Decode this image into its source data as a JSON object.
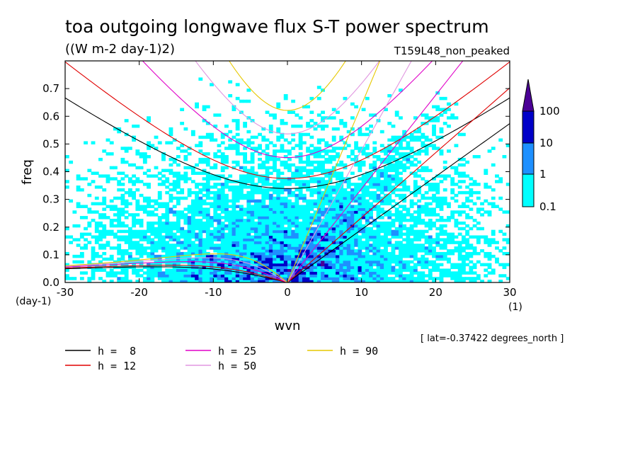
{
  "chart_data": {
    "type": "heatmap",
    "title": "toa outgoing longwave flux S-T power spectrum",
    "units_label": "((W m-2 day-1)2)",
    "run_label": "T159L48_non_peaked",
    "xlabel": "wvn",
    "x_unit_label": "(1)",
    "ylabel": "freq",
    "y_unit_label": "(day-1)",
    "xlim": [
      -30,
      30
    ],
    "ylim": [
      0,
      0.8
    ],
    "x_ticks": [
      -30,
      -20,
      -10,
      0,
      10,
      20,
      30
    ],
    "x_tick_labels": [
      "-30",
      "-20",
      "-10",
      "0",
      "10",
      "20",
      "30"
    ],
    "y_ticks": [
      0,
      0.1,
      0.2,
      0.3,
      0.4,
      0.5,
      0.6,
      0.7
    ],
    "y_tick_labels": [
      "0.0",
      "0.1",
      "0.2",
      "0.3",
      "0.4",
      "0.5",
      "0.6",
      "0.7"
    ],
    "colorbar": {
      "levels": [
        0.1,
        1,
        10,
        100
      ],
      "labels": [
        "0.1",
        "1",
        "10",
        "100"
      ],
      "colors": [
        "#00ffff",
        "#1e90ff",
        "#0000c8",
        "#4b0096"
      ]
    },
    "series": [
      {
        "name": "h = 8",
        "equivalent_depth": 8,
        "color": "#000000"
      },
      {
        "name": "h = 12",
        "equivalent_depth": 12,
        "color": "#e00000"
      },
      {
        "name": "h = 25",
        "equivalent_depth": 25,
        "color": "#e000c8"
      },
      {
        "name": "h = 50",
        "equivalent_depth": 50,
        "color": "#e096e0"
      },
      {
        "name": "h = 90",
        "equivalent_depth": 90,
        "color": "#e6c800"
      }
    ],
    "legend_labels": [
      "h =  8",
      "h = 12",
      "h = 25",
      "h = 50",
      "h = 90"
    ],
    "latitude_note": "[ lat=-0.37422 degrees_north ]"
  }
}
